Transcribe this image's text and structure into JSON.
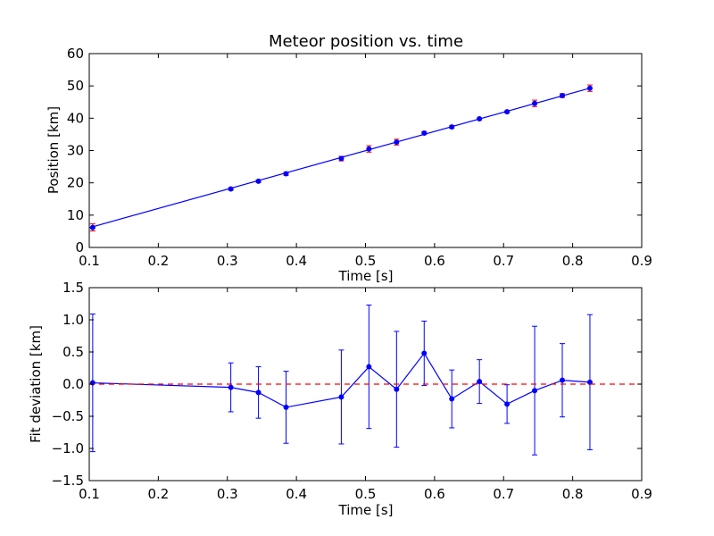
{
  "chart_data": [
    {
      "type": "line",
      "title": "Meteor position vs. time",
      "xlabel": "Time [s]",
      "ylabel": "Position [km]",
      "xlim": [
        0.1,
        0.9
      ],
      "ylim": [
        0,
        60
      ],
      "xticks": [
        "0.1",
        "0.2",
        "0.3",
        "0.4",
        "0.5",
        "0.6",
        "0.7",
        "0.8",
        "0.9"
      ],
      "yticks": [
        "0",
        "10",
        "20",
        "30",
        "40",
        "50",
        "60"
      ],
      "grid": false,
      "series": [
        {
          "kind": "errorbar-points",
          "color": "#ff0000",
          "marker_color": "#0000ff",
          "x": [
            0.105,
            0.305,
            0.345,
            0.385,
            0.465,
            0.505,
            0.545,
            0.585,
            0.625,
            0.665,
            0.705,
            0.745,
            0.785,
            0.825
          ],
          "y": [
            6.2,
            18.1,
            20.5,
            22.8,
            27.5,
            30.5,
            32.6,
            35.4,
            37.3,
            39.8,
            42.0,
            44.6,
            47.0,
            49.3
          ],
          "yerr": [
            1.1,
            0.4,
            0.4,
            0.5,
            0.7,
            1.0,
            0.9,
            0.5,
            0.4,
            0.3,
            0.3,
            1.0,
            0.6,
            1.0
          ]
        },
        {
          "kind": "fit-line",
          "color": "#0000ff",
          "x": [
            0.1,
            0.825
          ],
          "y": [
            6.1,
            49.3
          ]
        }
      ]
    },
    {
      "type": "line",
      "title": "",
      "xlabel": "Time [s]",
      "ylabel": "Fit deviation [km]",
      "xlim": [
        0.1,
        0.9
      ],
      "ylim": [
        -1.5,
        1.5
      ],
      "xticks": [
        "0.1",
        "0.2",
        "0.3",
        "0.4",
        "0.5",
        "0.6",
        "0.7",
        "0.8",
        "0.9"
      ],
      "yticks": [
        "−1.5",
        "−1.0",
        "−0.5",
        "0.0",
        "0.5",
        "1.0",
        "1.5"
      ],
      "grid": false,
      "series": [
        {
          "kind": "errorbar-line",
          "color": "#0000ff",
          "x": [
            0.105,
            0.305,
            0.345,
            0.385,
            0.465,
            0.505,
            0.545,
            0.585,
            0.625,
            0.665,
            0.705,
            0.745,
            0.785,
            0.825
          ],
          "y": [
            0.02,
            -0.05,
            -0.13,
            -0.36,
            -0.2,
            0.27,
            -0.08,
            0.48,
            -0.23,
            0.04,
            -0.31,
            -0.1,
            0.06,
            0.03
          ],
          "yerr": [
            1.07,
            0.38,
            0.4,
            0.56,
            0.73,
            0.96,
            0.9,
            0.5,
            0.45,
            0.34,
            0.3,
            1.0,
            0.57,
            1.05
          ]
        },
        {
          "kind": "reference-line",
          "color": "#ff0000",
          "dash": "dashed",
          "y": 0
        }
      ]
    }
  ]
}
